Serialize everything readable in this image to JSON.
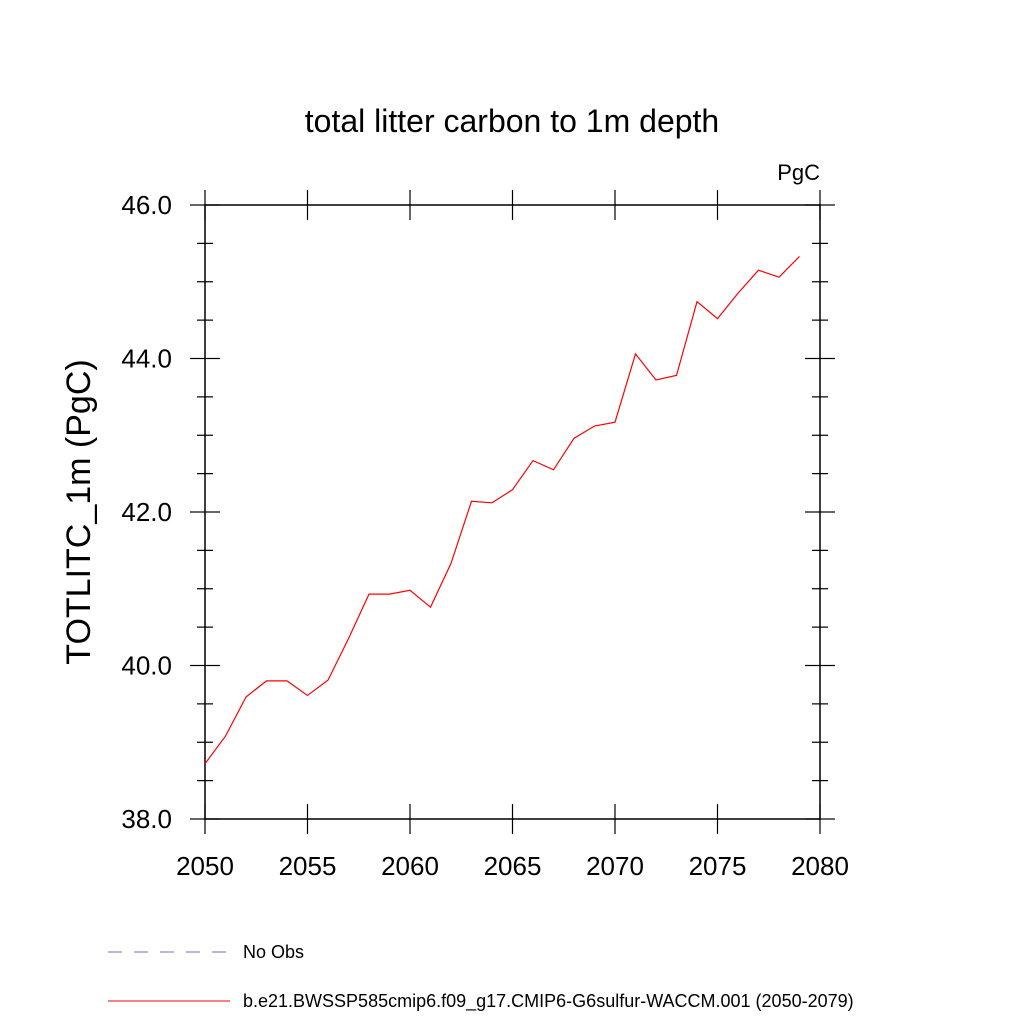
{
  "chart_data": {
    "type": "line",
    "title": "total litter carbon to 1m depth",
    "units_label": "PgC",
    "ylabel": "TOTLITC_1m  (PgC)",
    "xlabel": "",
    "xlim": [
      2050,
      2080
    ],
    "ylim": [
      38.0,
      46.0
    ],
    "x_ticks": [
      2050,
      2055,
      2060,
      2065,
      2070,
      2075,
      2080
    ],
    "x_tick_labels": [
      "2050",
      "2055",
      "2060",
      "2065",
      "2070",
      "2075",
      "2080"
    ],
    "y_ticks": [
      38.0,
      40.0,
      42.0,
      44.0,
      46.0
    ],
    "y_tick_labels": [
      "38.0",
      "40.0",
      "42.0",
      "44.0",
      "46.0"
    ],
    "grid": false,
    "legend_placement": "bottom",
    "series": [
      {
        "name": "b.e21.BWSSP585cmip6.f09_g17.CMIP6-G6sulfur-WACCM.001 (2050-2079)",
        "color": "#ff0000",
        "style": "solid",
        "x": [
          2050,
          2051,
          2052,
          2053,
          2054,
          2055,
          2056,
          2057,
          2058,
          2059,
          2060,
          2061,
          2062,
          2063,
          2064,
          2065,
          2066,
          2067,
          2068,
          2069,
          2070,
          2071,
          2072,
          2073,
          2074,
          2075,
          2076,
          2077,
          2078,
          2079
        ],
        "y": [
          38.72,
          39.08,
          39.59,
          39.8,
          39.8,
          39.61,
          39.81,
          40.35,
          40.93,
          40.93,
          40.98,
          40.76,
          41.33,
          42.14,
          42.12,
          42.29,
          42.67,
          42.55,
          42.96,
          43.12,
          43.17,
          44.06,
          43.72,
          43.78,
          44.74,
          44.52,
          44.85,
          45.15,
          45.06,
          45.33
        ]
      }
    ],
    "legend": [
      {
        "label": "No Obs",
        "color": "#7b68c8",
        "style": "dashed"
      },
      {
        "label": "b.e21.BWSSP585cmip6.f09_g17.CMIP6-G6sulfur-WACCM.001 (2050-2079)",
        "color": "#ff0000",
        "style": "solid"
      }
    ]
  }
}
